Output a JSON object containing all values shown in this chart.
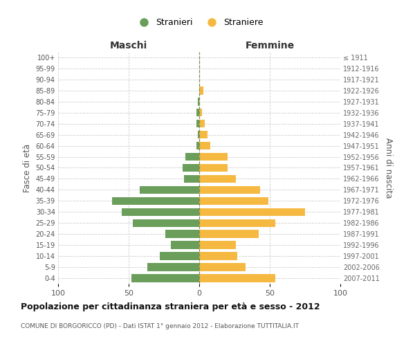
{
  "age_groups": [
    "100+",
    "95-99",
    "90-94",
    "85-89",
    "80-84",
    "75-79",
    "70-74",
    "65-69",
    "60-64",
    "55-59",
    "50-54",
    "45-49",
    "40-44",
    "35-39",
    "30-34",
    "25-29",
    "20-24",
    "15-19",
    "10-14",
    "5-9",
    "0-4"
  ],
  "birth_years": [
    "≤ 1911",
    "1912-1916",
    "1917-1921",
    "1922-1926",
    "1927-1931",
    "1932-1936",
    "1937-1941",
    "1942-1946",
    "1947-1951",
    "1952-1956",
    "1957-1961",
    "1962-1966",
    "1967-1971",
    "1972-1976",
    "1977-1981",
    "1982-1986",
    "1987-1991",
    "1992-1996",
    "1997-2001",
    "2002-2006",
    "2007-2011"
  ],
  "maschi": [
    0,
    0,
    0,
    0,
    1,
    2,
    2,
    1,
    2,
    10,
    12,
    11,
    42,
    62,
    55,
    47,
    24,
    20,
    28,
    37,
    48
  ],
  "femmine": [
    0,
    0,
    0,
    3,
    0,
    2,
    4,
    6,
    8,
    20,
    20,
    26,
    43,
    49,
    75,
    54,
    42,
    26,
    27,
    33,
    54
  ],
  "male_color": "#6a9e5a",
  "female_color": "#f5b942",
  "center_line_color": "#888855",
  "grid_color": "#cccccc",
  "bg_color": "#ffffff",
  "title": "Popolazione per cittadinanza straniera per età e sesso - 2012",
  "subtitle": "COMUNE DI BORGORICCO (PD) - Dati ISTAT 1° gennaio 2012 - Elaborazione TUTTITALIA.IT",
  "ylabel_left": "Fasce di età",
  "ylabel_right": "Anni di nascita",
  "xlabel_left": "Maschi",
  "xlabel_right": "Femmine",
  "legend_stranieri": "Stranieri",
  "legend_straniere": "Straniere",
  "xlim": 100
}
